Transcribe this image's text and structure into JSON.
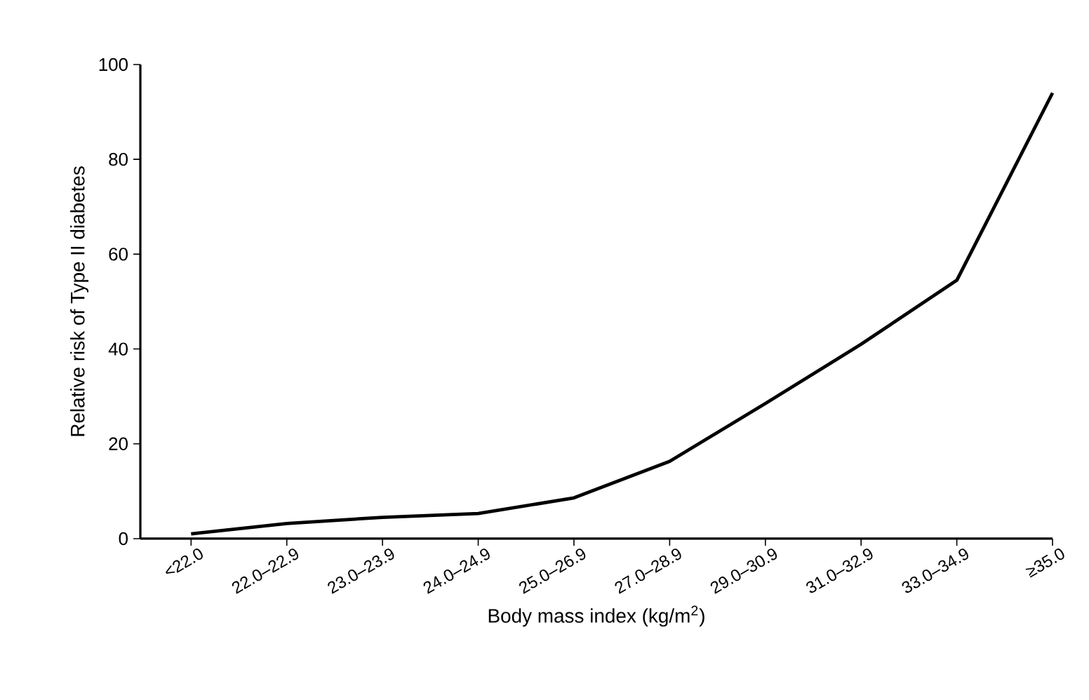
{
  "chart_data": {
    "type": "line",
    "xlabel": "Body mass index (kg/m$^{2}$)",
    "ylabel": "Relative risk of Type II diabetes",
    "categories": [
      "<22.0",
      "22.0–22.9",
      "23.0–23.9",
      "24.0–24.9",
      "25.0–26.9",
      "27.0–28.9",
      "29.0–30.9",
      "31.0–32.9",
      "33.0–34.9",
      "≥35.0"
    ],
    "values": [
      1,
      3.2,
      4.5,
      5.3,
      8.6,
      16.3,
      28.5,
      41,
      54.5,
      94
    ],
    "color": "#000000",
    "ylim": [
      0,
      100
    ],
    "yticks": [
      0,
      20,
      40,
      60,
      80,
      100
    ],
    "grid": false,
    "marker": "none",
    "line_style": "solid"
  }
}
